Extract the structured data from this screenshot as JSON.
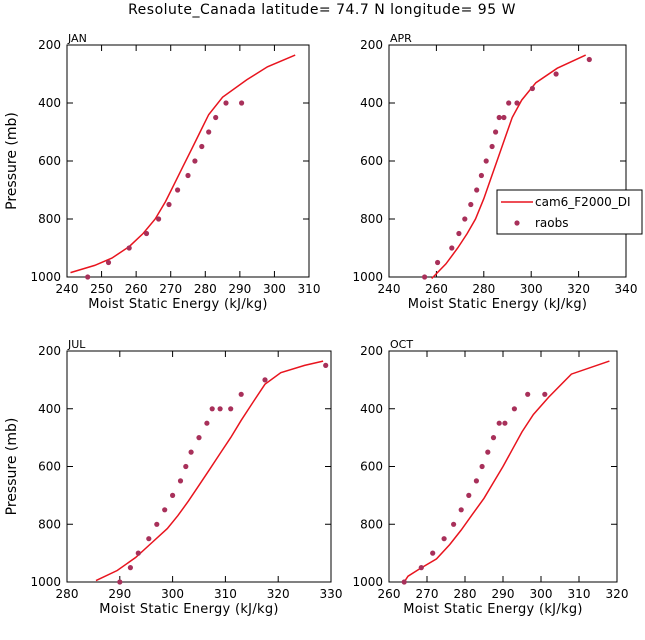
{
  "figure": {
    "title": "Resolute_Canada  latitude= 74.7 N longitude= 95 W"
  },
  "colors": {
    "model_line": "#e8141e",
    "obs_marker": "#a8305a",
    "axis": "#000000"
  },
  "legend": {
    "panel": "APR",
    "placement": "right",
    "entries": [
      {
        "label": "cam6_F2000_DI",
        "style": "line"
      },
      {
        "label": "raobs",
        "style": "marker"
      }
    ]
  },
  "chart_data": [
    {
      "type": "line",
      "panel_label": "JAN",
      "xlabel": "Moist Static Energy (kJ/kg)",
      "ylabel": "Pressure (mb)",
      "xlim": [
        240,
        310
      ],
      "ylim": [
        1000,
        200
      ],
      "y_inverted": true,
      "xticks": [
        240,
        250,
        260,
        270,
        280,
        290,
        300,
        310
      ],
      "yticks": [
        200,
        400,
        600,
        800,
        1000
      ],
      "series": [
        {
          "name": "cam6_F2000_DI",
          "x": [
            241,
            248,
            253,
            258,
            262,
            265.5,
            268.5,
            271,
            273.5,
            276,
            278.5,
            281,
            285,
            292,
            298,
            306
          ],
          "y": [
            985,
            960,
            935,
            895,
            850,
            800,
            740,
            680,
            620,
            560,
            500,
            440,
            380,
            320,
            275,
            235
          ]
        },
        {
          "name": "raobs",
          "x": [
            246,
            252,
            258,
            263,
            266.5,
            269.5,
            272,
            275,
            277,
            279,
            281,
            283,
            286,
            290.5
          ],
          "y": [
            1000,
            950,
            900,
            850,
            800,
            750,
            700,
            650,
            600,
            550,
            500,
            450,
            400,
            400
          ]
        }
      ]
    },
    {
      "type": "line",
      "panel_label": "APR",
      "xlabel": "Moist Static Energy (kJ/kg)",
      "ylabel": "",
      "xlim": [
        240,
        340
      ],
      "ylim": [
        1000,
        200
      ],
      "y_inverted": true,
      "xticks": [
        240,
        260,
        280,
        300,
        320,
        340
      ],
      "yticks": [
        200,
        400,
        600,
        800,
        1000
      ],
      "series": [
        {
          "name": "cam6_F2000_DI",
          "x": [
            258,
            264,
            269,
            273,
            276.5,
            280,
            283,
            286,
            289,
            292,
            296,
            302,
            311,
            323
          ],
          "y": [
            1005,
            955,
            900,
            850,
            800,
            730,
            660,
            590,
            520,
            450,
            390,
            330,
            280,
            235
          ]
        },
        {
          "name": "raobs",
          "x": [
            255,
            260.5,
            266.5,
            269.5,
            272,
            274.5,
            277,
            279,
            281,
            283.5,
            285,
            286.5,
            288.5,
            290.5,
            294,
            300.5,
            310.5,
            324.5
          ],
          "y": [
            1000,
            950,
            900,
            850,
            800,
            750,
            700,
            650,
            600,
            550,
            500,
            450,
            450,
            400,
            400,
            350,
            300,
            250
          ]
        }
      ]
    },
    {
      "type": "line",
      "panel_label": "JUL",
      "xlabel": "Moist Static Energy (kJ/kg)",
      "ylabel": "Pressure (mb)",
      "xlim": [
        280,
        330
      ],
      "ylim": [
        1000,
        200
      ],
      "y_inverted": true,
      "xticks": [
        280,
        290,
        300,
        310,
        320,
        330
      ],
      "yticks": [
        200,
        400,
        600,
        800,
        1000
      ],
      "series": [
        {
          "name": "cam6_F2000_DI",
          "x": [
            285.5,
            289.5,
            293,
            296,
            299,
            301,
            303,
            305,
            307,
            309,
            311,
            313,
            315.5,
            317.5,
            320.5,
            325,
            328.5
          ],
          "y": [
            995,
            960,
            915,
            865,
            815,
            770,
            720,
            665,
            610,
            555,
            500,
            440,
            370,
            315,
            275,
            250,
            235
          ]
        },
        {
          "name": "raobs",
          "x": [
            290,
            292,
            293.5,
            295.5,
            297,
            298.5,
            300,
            301.5,
            302.5,
            303.5,
            305,
            306.5,
            307.5,
            309,
            311,
            313,
            317.5,
            329
          ],
          "y": [
            1000,
            950,
            900,
            850,
            800,
            750,
            700,
            650,
            600,
            550,
            500,
            450,
            400,
            400,
            400,
            350,
            300,
            250
          ]
        }
      ]
    },
    {
      "type": "line",
      "panel_label": "OCT",
      "xlabel": "Moist Static Energy (kJ/kg)",
      "ylabel": "",
      "xlim": [
        260,
        320
      ],
      "ylim": [
        1000,
        200
      ],
      "y_inverted": true,
      "xticks": [
        260,
        270,
        280,
        290,
        300,
        310,
        320
      ],
      "yticks": [
        200,
        400,
        600,
        800,
        1000
      ],
      "series": [
        {
          "name": "cam6_F2000_DI",
          "x": [
            264,
            265,
            268,
            272.5,
            276,
            279,
            282,
            285,
            287.5,
            290,
            292.5,
            295,
            298,
            302,
            308,
            318
          ],
          "y": [
            1000,
            980,
            955,
            920,
            870,
            820,
            765,
            710,
            655,
            600,
            540,
            480,
            420,
            360,
            280,
            235
          ]
        },
        {
          "name": "raobs",
          "x": [
            264,
            268.5,
            271.5,
            274.5,
            277,
            279,
            281,
            283,
            284.5,
            286,
            287.5,
            289,
            290.5,
            293,
            296.5,
            301
          ],
          "y": [
            1000,
            950,
            900,
            850,
            800,
            750,
            700,
            650,
            600,
            550,
            500,
            450,
            450,
            400,
            350,
            350
          ]
        }
      ]
    }
  ]
}
